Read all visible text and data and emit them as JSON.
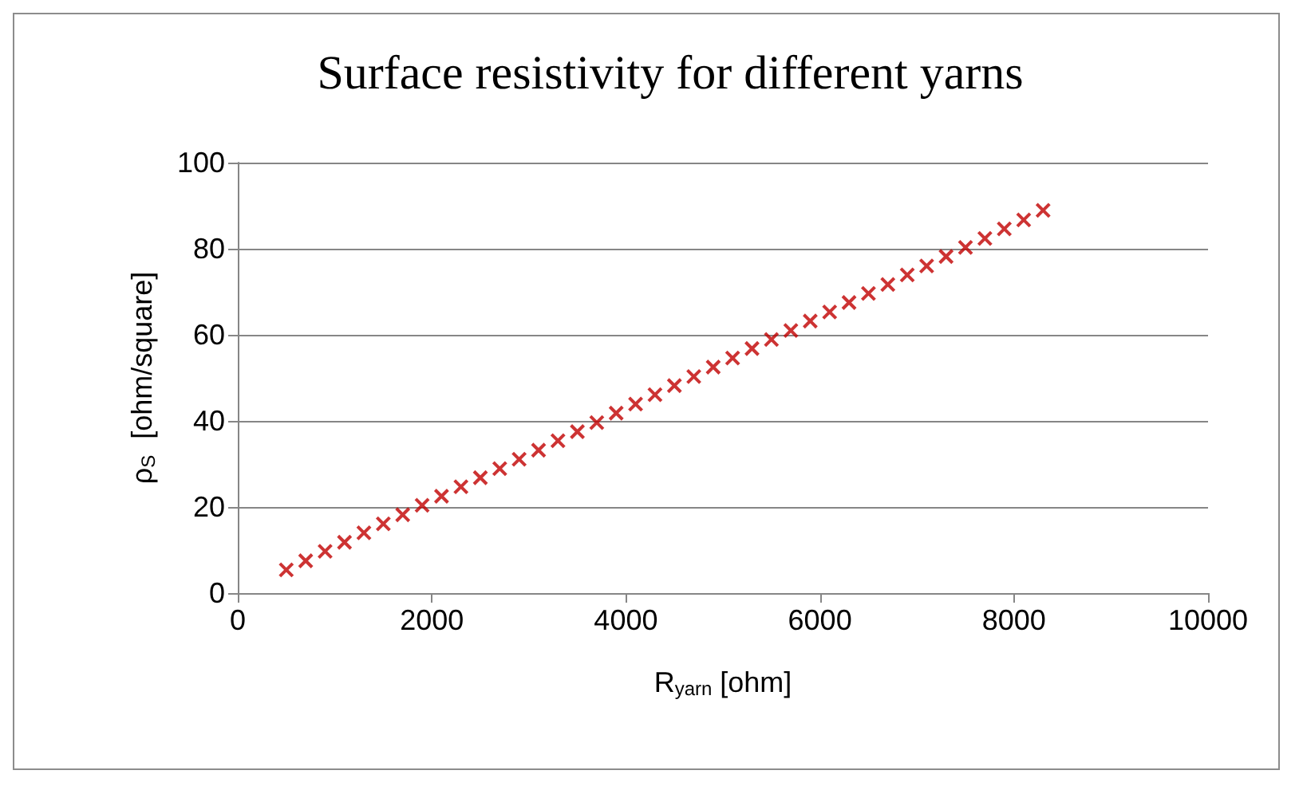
{
  "chart_data": {
    "type": "scatter",
    "title": "Surface resistivity for different yarns",
    "xlabel": "R$_{yarn}$ [ohm]",
    "ylabel": "ρ$_{S}$  [ohm/square]",
    "x": [
      500,
      700,
      900,
      1100,
      1300,
      1500,
      1700,
      1900,
      2100,
      2300,
      2500,
      2700,
      2900,
      3100,
      3300,
      3500,
      3700,
      3900,
      4100,
      4300,
      4500,
      4700,
      4900,
      5100,
      5300,
      5500,
      5700,
      5900,
      6100,
      6300,
      6500,
      6700,
      6900,
      7100,
      7300,
      7500,
      7700,
      7900,
      8100,
      8300
    ],
    "series": [
      {
        "color": "#c00000",
        "values": [
          5.4,
          7.5,
          9.7,
          11.8,
          14.0,
          16.1,
          18.2,
          20.4,
          22.5,
          24.7,
          26.8,
          28.9,
          31.1,
          33.2,
          35.4,
          37.5,
          39.6,
          41.8,
          43.9,
          46.1,
          48.2,
          50.3,
          52.5,
          54.6,
          56.8,
          58.9,
          61.0,
          63.2,
          65.3,
          67.5,
          69.6,
          71.7,
          73.9,
          76.0,
          78.2,
          80.3,
          82.4,
          84.6,
          86.7,
          88.9
        ]
      }
    ],
    "xlim": [
      0,
      10000
    ],
    "xticks": [
      0,
      2000,
      4000,
      6000,
      8000,
      10000
    ],
    "ylim": [
      0,
      100
    ],
    "yticks": [
      0,
      20,
      40,
      60,
      80,
      100
    ],
    "grid": "y",
    "marker": "cross"
  }
}
